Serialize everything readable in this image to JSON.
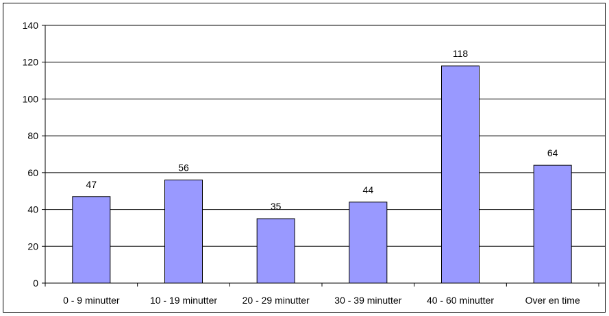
{
  "chart_data": {
    "type": "bar",
    "categories": [
      "0 - 9 minutter",
      "10 - 19 minutter",
      "20 - 29 minutter",
      "30 - 39 minutter",
      "40 - 60 minutter",
      "Over en time"
    ],
    "values": [
      47,
      56,
      35,
      44,
      118,
      64
    ],
    "data_labels": [
      "47",
      "56",
      "35",
      "44",
      "118",
      "64"
    ],
    "y_ticks": [
      "0",
      "20",
      "40",
      "60",
      "80",
      "100",
      "120",
      "140"
    ],
    "ylim": [
      0,
      140
    ],
    "grid": true,
    "legend": "none",
    "bar_color": "#9999FF",
    "bar_border_color": "#000000",
    "grid_color": "#000000"
  }
}
